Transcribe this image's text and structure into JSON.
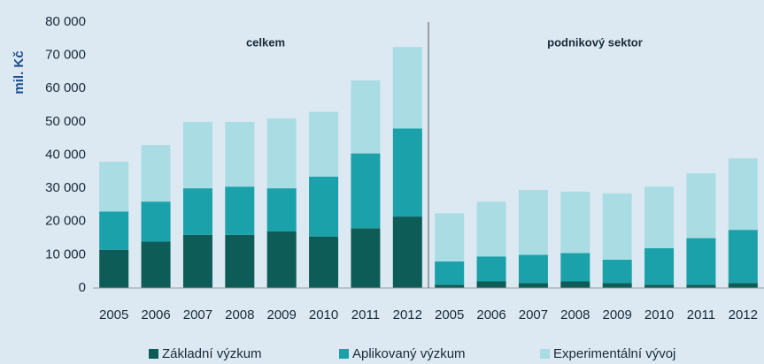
{
  "chart_data": {
    "type": "stacked_bar",
    "y_axis_label": "mil. Kč",
    "annotations": [
      "celkem",
      "podnikový sektor"
    ],
    "categories": [
      "2005",
      "2006",
      "2007",
      "2008",
      "2009",
      "2010",
      "2011",
      "2012",
      "2005",
      "2006",
      "2007",
      "2008",
      "2009",
      "2010",
      "2011",
      "2012"
    ],
    "series": [
      {
        "name": "Základní výzkum",
        "color": "#0d5c57",
        "values": [
          11500,
          14000,
          16000,
          16000,
          17000,
          15500,
          18000,
          21500,
          1000,
          2000,
          1500,
          2000,
          1500,
          1000,
          1000,
          1500
        ]
      },
      {
        "name": "Aplikovaný výzkum",
        "color": "#1aa1a9",
        "values": [
          11500,
          12000,
          14000,
          14500,
          13000,
          18000,
          22500,
          26500,
          7000,
          7500,
          8500,
          8500,
          7000,
          11000,
          14000,
          16000
        ]
      },
      {
        "name": "Experimentální vývoj",
        "color": "#a9dde3",
        "values": [
          15000,
          17000,
          20000,
          19500,
          21000,
          19500,
          22000,
          24500,
          14500,
          16500,
          19500,
          18500,
          20000,
          18500,
          19500,
          21500
        ]
      }
    ],
    "ylim": [
      0,
      80000
    ],
    "yticks": [
      0,
      {
        "value": 10000,
        "label": "10 000"
      },
      {
        "value": 20000,
        "label": "20 000"
      },
      {
        "value": 30000,
        "label": "30 000"
      },
      {
        "value": 40000,
        "label": "40 000"
      },
      {
        "value": 50000,
        "label": "50 000"
      },
      {
        "value": 60000,
        "label": "60 000"
      },
      {
        "value": 70000,
        "label": "70 000"
      },
      {
        "value": 80000,
        "label": "80 000"
      }
    ],
    "grid": false,
    "legend": "bottom"
  }
}
